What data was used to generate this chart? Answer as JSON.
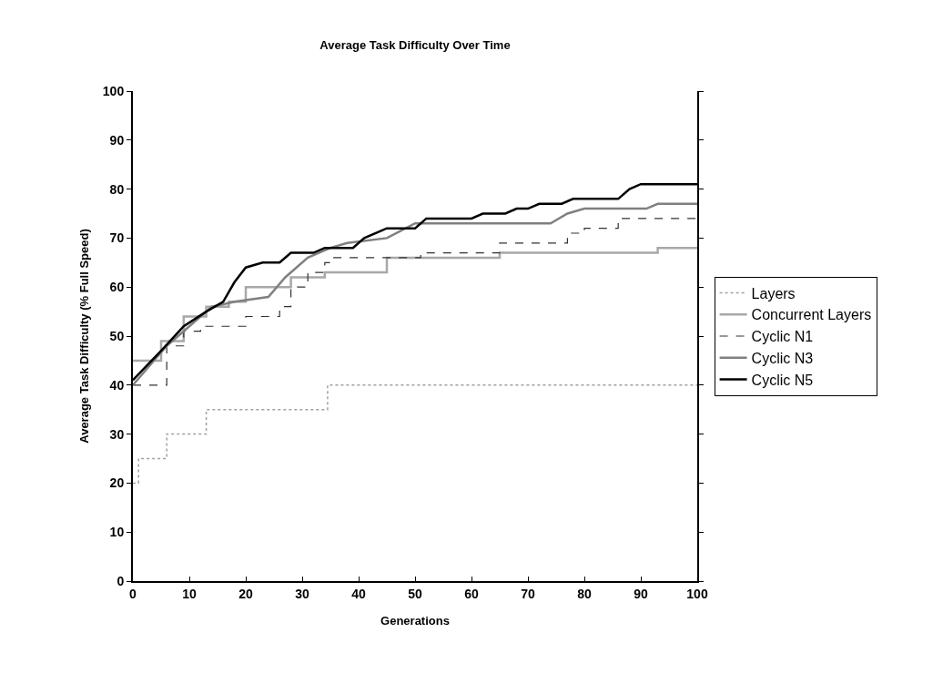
{
  "chart_data": {
    "type": "line",
    "title": "Average Task Difficulty Over Time",
    "xlabel": "Generations",
    "ylabel": "Average Task Difficulty (% Full Speed)",
    "xlim": [
      0,
      100
    ],
    "xticks": [
      0,
      10,
      20,
      30,
      40,
      50,
      60,
      70,
      80,
      90,
      100
    ],
    "ylim": [
      0,
      100
    ],
    "yticks": [
      0,
      10,
      20,
      30,
      40,
      50,
      60,
      70,
      80,
      90,
      100
    ],
    "grid": false,
    "legend": "right",
    "marker": "none",
    "series": [
      {
        "name": "Layers",
        "type": "step",
        "color": "#a0a0a0",
        "line_style": "dotted",
        "x": [
          0,
          1,
          6,
          13,
          34.5,
          100
        ],
        "values": [
          20,
          25,
          30,
          35,
          40,
          40
        ]
      },
      {
        "name": "Concurrent Layers",
        "type": "step",
        "color": "#a8a8a8",
        "line_style": "solid",
        "x": [
          0,
          3,
          5,
          9,
          13,
          17,
          20,
          28,
          34,
          45,
          65,
          93,
          100
        ],
        "values": [
          45,
          45,
          49,
          54,
          56,
          57,
          60,
          62,
          63,
          66,
          67,
          68,
          68
        ]
      },
      {
        "name": "Cyclic N1",
        "type": "step",
        "color": "#333333",
        "line_style": "dashed",
        "x": [
          0,
          6,
          9,
          12,
          20,
          26,
          28,
          31,
          34,
          35,
          51,
          65,
          77,
          80,
          86,
          100
        ],
        "values": [
          40,
          48,
          51,
          52,
          54,
          56,
          60,
          63,
          65,
          66,
          67,
          69,
          71,
          72,
          74,
          74
        ]
      },
      {
        "name": "Cyclic N3",
        "color": "#808080",
        "line_style": "solid",
        "x": [
          0,
          6,
          10,
          14,
          18,
          24,
          27,
          31,
          35,
          38,
          45,
          50,
          74,
          77,
          80,
          91,
          93,
          100
        ],
        "values": [
          40,
          48,
          52,
          56,
          57,
          58,
          62,
          66,
          68,
          69,
          70,
          73,
          73,
          75,
          76,
          76,
          77,
          77
        ]
      },
      {
        "name": "Cyclic N5",
        "color": "#000000",
        "line_style": "solid",
        "x": [
          0,
          5,
          9,
          13,
          16,
          18,
          20,
          23,
          26,
          28,
          32,
          34,
          39,
          41,
          45,
          50,
          52,
          60,
          62,
          66,
          68,
          70,
          72,
          76,
          78,
          86,
          88,
          90,
          100
        ],
        "values": [
          41,
          47,
          52,
          55,
          57,
          61,
          64,
          65,
          65,
          67,
          67,
          68,
          68,
          70,
          72,
          72,
          74,
          74,
          75,
          75,
          76,
          76,
          77,
          77,
          78,
          78,
          80,
          81,
          81
        ]
      }
    ]
  }
}
